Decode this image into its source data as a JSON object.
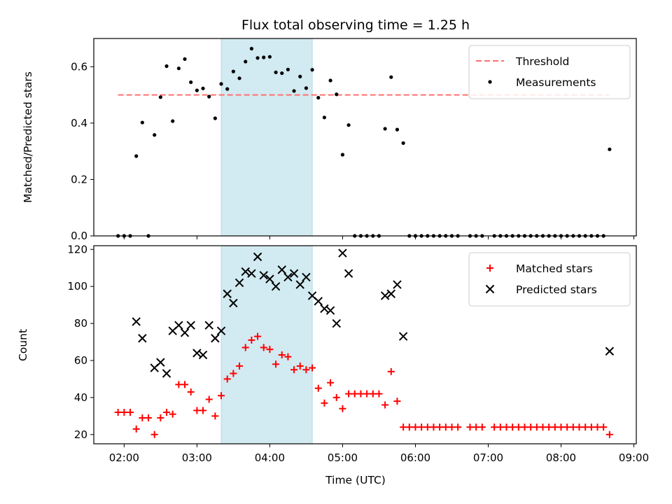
{
  "chart_data": [
    {
      "type": "scatter",
      "title": "Flux total observing time = 1.25 h",
      "ylabel": "Matched/Predicted stars",
      "xlabel": "",
      "xlim": [
        "01:35",
        "09:02"
      ],
      "ylim": [
        0,
        0.7
      ],
      "yticks": [
        "0.0",
        "0.2",
        "0.4",
        "0.6"
      ],
      "highlight_span": {
        "start": "03:20",
        "end": "04:35",
        "color": "#add8e6"
      },
      "legend": {
        "placement": "upper right",
        "entries": [
          "Threshold",
          "Measurements"
        ]
      },
      "threshold": {
        "name": "Threshold",
        "y": 0.5,
        "x_start": "01:55",
        "x_end": "08:40",
        "color": "#ff7070",
        "style": "dashed"
      },
      "series": [
        {
          "name": "Measurements",
          "color": "#000000",
          "points": [
            [
              "01:55",
              0
            ],
            [
              "02:00",
              0
            ],
            [
              "02:05",
              0
            ],
            [
              "02:10",
              0.283
            ],
            [
              "02:15",
              0.402
            ],
            [
              "02:20",
              0
            ],
            [
              "02:25",
              0.358
            ],
            [
              "02:30",
              0.492
            ],
            [
              "02:35",
              0.602
            ],
            [
              "02:40",
              0.407
            ],
            [
              "02:45",
              0.594
            ],
            [
              "02:50",
              0.627
            ],
            [
              "02:55",
              0.545
            ],
            [
              "03:00",
              0.516
            ],
            [
              "03:05",
              0.523
            ],
            [
              "03:10",
              0.494
            ],
            [
              "03:15",
              0.417
            ],
            [
              "03:20",
              0.539
            ],
            [
              "03:25",
              0.521
            ],
            [
              "03:30",
              0.583
            ],
            [
              "03:35",
              0.559
            ],
            [
              "03:40",
              0.618
            ],
            [
              "03:45",
              0.664
            ],
            [
              "03:50",
              0.631
            ],
            [
              "03:55",
              0.633
            ],
            [
              "04:00",
              0.635
            ],
            [
              "04:05",
              0.58
            ],
            [
              "04:10",
              0.577
            ],
            [
              "04:15",
              0.59
            ],
            [
              "04:20",
              0.514
            ],
            [
              "04:25",
              0.565
            ],
            [
              "04:30",
              0.524
            ],
            [
              "04:35",
              0.589
            ],
            [
              "04:40",
              0.49
            ],
            [
              "04:45",
              0.42
            ],
            [
              "04:50",
              0.551
            ],
            [
              "04:55",
              0.502
            ],
            [
              "05:00",
              0.288
            ],
            [
              "05:05",
              0.393
            ],
            [
              "05:10",
              0
            ],
            [
              "05:15",
              0
            ],
            [
              "05:20",
              0
            ],
            [
              "05:25",
              0
            ],
            [
              "05:30",
              0
            ],
            [
              "05:35",
              0.38
            ],
            [
              "05:40",
              0.563
            ],
            [
              "05:45",
              0.377
            ],
            [
              "05:50",
              0.329
            ],
            [
              "05:55",
              0
            ],
            [
              "06:00",
              0
            ],
            [
              "06:05",
              0
            ],
            [
              "06:10",
              0
            ],
            [
              "06:15",
              0
            ],
            [
              "06:20",
              0
            ],
            [
              "06:25",
              0
            ],
            [
              "06:30",
              0
            ],
            [
              "06:35",
              0
            ],
            [
              "06:45",
              0
            ],
            [
              "06:50",
              0
            ],
            [
              "06:55",
              0
            ],
            [
              "07:05",
              0
            ],
            [
              "07:10",
              0
            ],
            [
              "07:15",
              0
            ],
            [
              "07:20",
              0
            ],
            [
              "07:25",
              0
            ],
            [
              "07:30",
              0
            ],
            [
              "07:35",
              0
            ],
            [
              "07:40",
              0
            ],
            [
              "07:45",
              0
            ],
            [
              "07:50",
              0
            ],
            [
              "07:55",
              0
            ],
            [
              "08:00",
              0
            ],
            [
              "08:05",
              0
            ],
            [
              "08:10",
              0
            ],
            [
              "08:15",
              0
            ],
            [
              "08:20",
              0
            ],
            [
              "08:25",
              0
            ],
            [
              "08:30",
              0
            ],
            [
              "08:35",
              0
            ],
            [
              "08:40",
              0.307
            ]
          ]
        }
      ]
    },
    {
      "type": "scatter",
      "title": "",
      "xlabel": "Time (UTC)",
      "ylabel": "Count",
      "xlim": [
        "01:35",
        "09:02"
      ],
      "ylim": [
        15,
        122
      ],
      "xticks": [
        "02:00",
        "03:00",
        "04:00",
        "05:00",
        "06:00",
        "07:00",
        "08:00",
        "09:00"
      ],
      "yticks": [
        "20",
        "40",
        "60",
        "80",
        "100",
        "120"
      ],
      "highlight_span": {
        "start": "03:20",
        "end": "04:35",
        "color": "#add8e6"
      },
      "legend": {
        "placement": "upper right",
        "entries": [
          "Matched stars",
          "Predicted stars"
        ]
      },
      "series": [
        {
          "name": "Matched stars",
          "marker": "+",
          "color": "#ff0000",
          "points": [
            [
              "01:55",
              32
            ],
            [
              "02:00",
              32
            ],
            [
              "02:05",
              32
            ],
            [
              "02:10",
              23
            ],
            [
              "02:15",
              29
            ],
            [
              "02:20",
              29
            ],
            [
              "02:25",
              20
            ],
            [
              "02:30",
              29
            ],
            [
              "02:35",
              32
            ],
            [
              "02:40",
              31
            ],
            [
              "02:45",
              47
            ],
            [
              "02:50",
              47
            ],
            [
              "02:55",
              43
            ],
            [
              "03:00",
              33
            ],
            [
              "03:05",
              33
            ],
            [
              "03:10",
              39
            ],
            [
              "03:15",
              30
            ],
            [
              "03:20",
              41
            ],
            [
              "03:25",
              50
            ],
            [
              "03:30",
              53
            ],
            [
              "03:35",
              57
            ],
            [
              "03:40",
              67
            ],
            [
              "03:45",
              71
            ],
            [
              "03:50",
              73
            ],
            [
              "03:55",
              67
            ],
            [
              "04:00",
              66
            ],
            [
              "04:05",
              58
            ],
            [
              "04:10",
              63
            ],
            [
              "04:15",
              62
            ],
            [
              "04:20",
              55
            ],
            [
              "04:25",
              57
            ],
            [
              "04:30",
              55
            ],
            [
              "04:35",
              56
            ],
            [
              "04:40",
              45
            ],
            [
              "04:45",
              37
            ],
            [
              "04:50",
              48
            ],
            [
              "04:55",
              40
            ],
            [
              "05:00",
              34
            ],
            [
              "05:05",
              42
            ],
            [
              "05:10",
              42
            ],
            [
              "05:15",
              42
            ],
            [
              "05:20",
              42
            ],
            [
              "05:25",
              42
            ],
            [
              "05:30",
              42
            ],
            [
              "05:35",
              36
            ],
            [
              "05:40",
              54
            ],
            [
              "05:45",
              38
            ],
            [
              "05:50",
              24
            ],
            [
              "05:55",
              24
            ],
            [
              "06:00",
              24
            ],
            [
              "06:05",
              24
            ],
            [
              "06:10",
              24
            ],
            [
              "06:15",
              24
            ],
            [
              "06:20",
              24
            ],
            [
              "06:25",
              24
            ],
            [
              "06:30",
              24
            ],
            [
              "06:35",
              24
            ],
            [
              "06:45",
              24
            ],
            [
              "06:50",
              24
            ],
            [
              "06:55",
              24
            ],
            [
              "07:05",
              24
            ],
            [
              "07:10",
              24
            ],
            [
              "07:15",
              24
            ],
            [
              "07:20",
              24
            ],
            [
              "07:25",
              24
            ],
            [
              "07:30",
              24
            ],
            [
              "07:35",
              24
            ],
            [
              "07:40",
              24
            ],
            [
              "07:45",
              24
            ],
            [
              "07:50",
              24
            ],
            [
              "07:55",
              24
            ],
            [
              "08:00",
              24
            ],
            [
              "08:05",
              24
            ],
            [
              "08:10",
              24
            ],
            [
              "08:15",
              24
            ],
            [
              "08:20",
              24
            ],
            [
              "08:25",
              24
            ],
            [
              "08:30",
              24
            ],
            [
              "08:35",
              24
            ],
            [
              "08:40",
              20
            ]
          ]
        },
        {
          "name": "Predicted stars",
          "marker": "x",
          "color": "#000000",
          "points": [
            [
              "02:10",
              81
            ],
            [
              "02:15",
              72
            ],
            [
              "02:25",
              56
            ],
            [
              "02:30",
              59
            ],
            [
              "02:35",
              53
            ],
            [
              "02:40",
              76
            ],
            [
              "02:45",
              79
            ],
            [
              "02:50",
              75
            ],
            [
              "02:55",
              79
            ],
            [
              "03:00",
              64
            ],
            [
              "03:05",
              63
            ],
            [
              "03:10",
              79
            ],
            [
              "03:15",
              72
            ],
            [
              "03:20",
              76
            ],
            [
              "03:25",
              96
            ],
            [
              "03:30",
              91
            ],
            [
              "03:35",
              102
            ],
            [
              "03:40",
              108
            ],
            [
              "03:45",
              107
            ],
            [
              "03:50",
              116
            ],
            [
              "03:55",
              106
            ],
            [
              "04:00",
              104
            ],
            [
              "04:05",
              100
            ],
            [
              "04:10",
              109
            ],
            [
              "04:15",
              105
            ],
            [
              "04:20",
              107
            ],
            [
              "04:25",
              101
            ],
            [
              "04:30",
              105
            ],
            [
              "04:35",
              95
            ],
            [
              "04:40",
              92
            ],
            [
              "04:45",
              88
            ],
            [
              "04:50",
              87
            ],
            [
              "04:55",
              80
            ],
            [
              "05:00",
              118
            ],
            [
              "05:05",
              107
            ],
            [
              "05:35",
              95
            ],
            [
              "05:40",
              96
            ],
            [
              "05:45",
              101
            ],
            [
              "05:50",
              73
            ],
            [
              "08:40",
              65
            ]
          ]
        }
      ]
    }
  ]
}
